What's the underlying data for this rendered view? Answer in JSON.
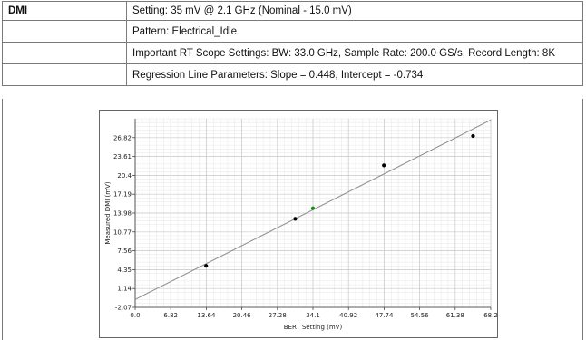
{
  "table": {
    "header_label": "DMI",
    "rows": [
      "Setting: 35 mV @ 2.1 GHz (Nominal - 15.0 mV)",
      "Pattern: Electrical_Idle",
      "Important RT Scope Settings: BW: 33.0 GHz, Sample Rate: 200.0 GS/s, Record Length: 8K",
      "Regression Line Parameters: Slope = 0.448, Intercept = -0.734"
    ]
  },
  "chart_data": {
    "type": "scatter",
    "xlabel": "BERT Setting (mV)",
    "ylabel": "Measured DMI (mV)",
    "xlim": [
      0,
      68.2
    ],
    "ylim": [
      -2.07,
      30.03
    ],
    "xticks": [
      "0.0",
      "6.82",
      "13.64",
      "20.46",
      "27.28",
      "34.1",
      "40.92",
      "47.74",
      "54.56",
      "61.38",
      "68.2"
    ],
    "yticks": [
      "-2.07",
      "1.14",
      "4.35",
      "7.56",
      "10.77",
      "13.98",
      "17.19",
      "20.4",
      "23.61",
      "26.82"
    ],
    "grid": true,
    "points": [
      {
        "x": 13.6,
        "y": 5.0,
        "color": "#000000"
      },
      {
        "x": 30.7,
        "y": 13.0,
        "color": "#000000"
      },
      {
        "x": 34.1,
        "y": 14.8,
        "color": "#1a8a1a"
      },
      {
        "x": 47.7,
        "y": 22.1,
        "color": "#000000"
      },
      {
        "x": 64.8,
        "y": 27.1,
        "color": "#000000"
      }
    ],
    "regression": {
      "slope": 0.448,
      "intercept": -0.734,
      "color": "#8a8a8a"
    }
  }
}
